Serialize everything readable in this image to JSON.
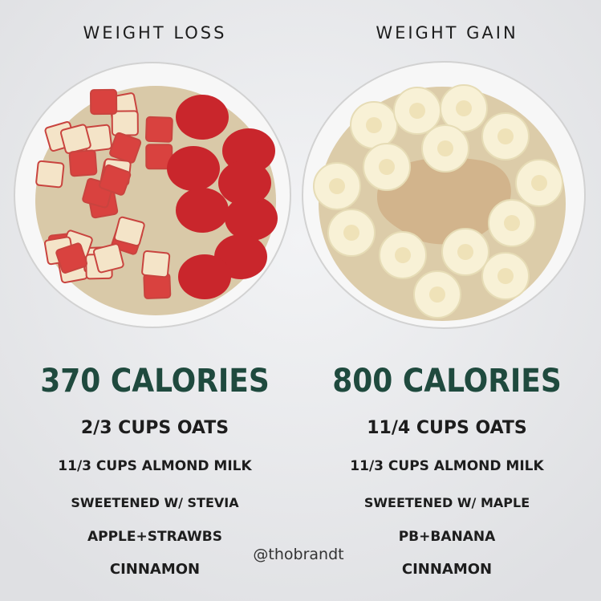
{
  "columns": [
    {
      "heading": "WEIGHT LOSS",
      "calories": "370 CALORIES",
      "items": [
        "2/3 CUPS OATS",
        "11/3 CUPS ALMOND MILK",
        "SWEETENED W/ STEVIA",
        "APPLE+STRAWBS",
        "CINNAMON"
      ]
    },
    {
      "heading": "WEIGHT GAIN",
      "calories": "800 CALORIES",
      "items": [
        "11/4 CUPS OATS",
        "11/3 CUPS ALMOND MILK",
        "SWEETENED W/ MAPLE",
        "PB+BANANA",
        "CINNAMON"
      ]
    }
  ],
  "credit": "@thobrandt"
}
